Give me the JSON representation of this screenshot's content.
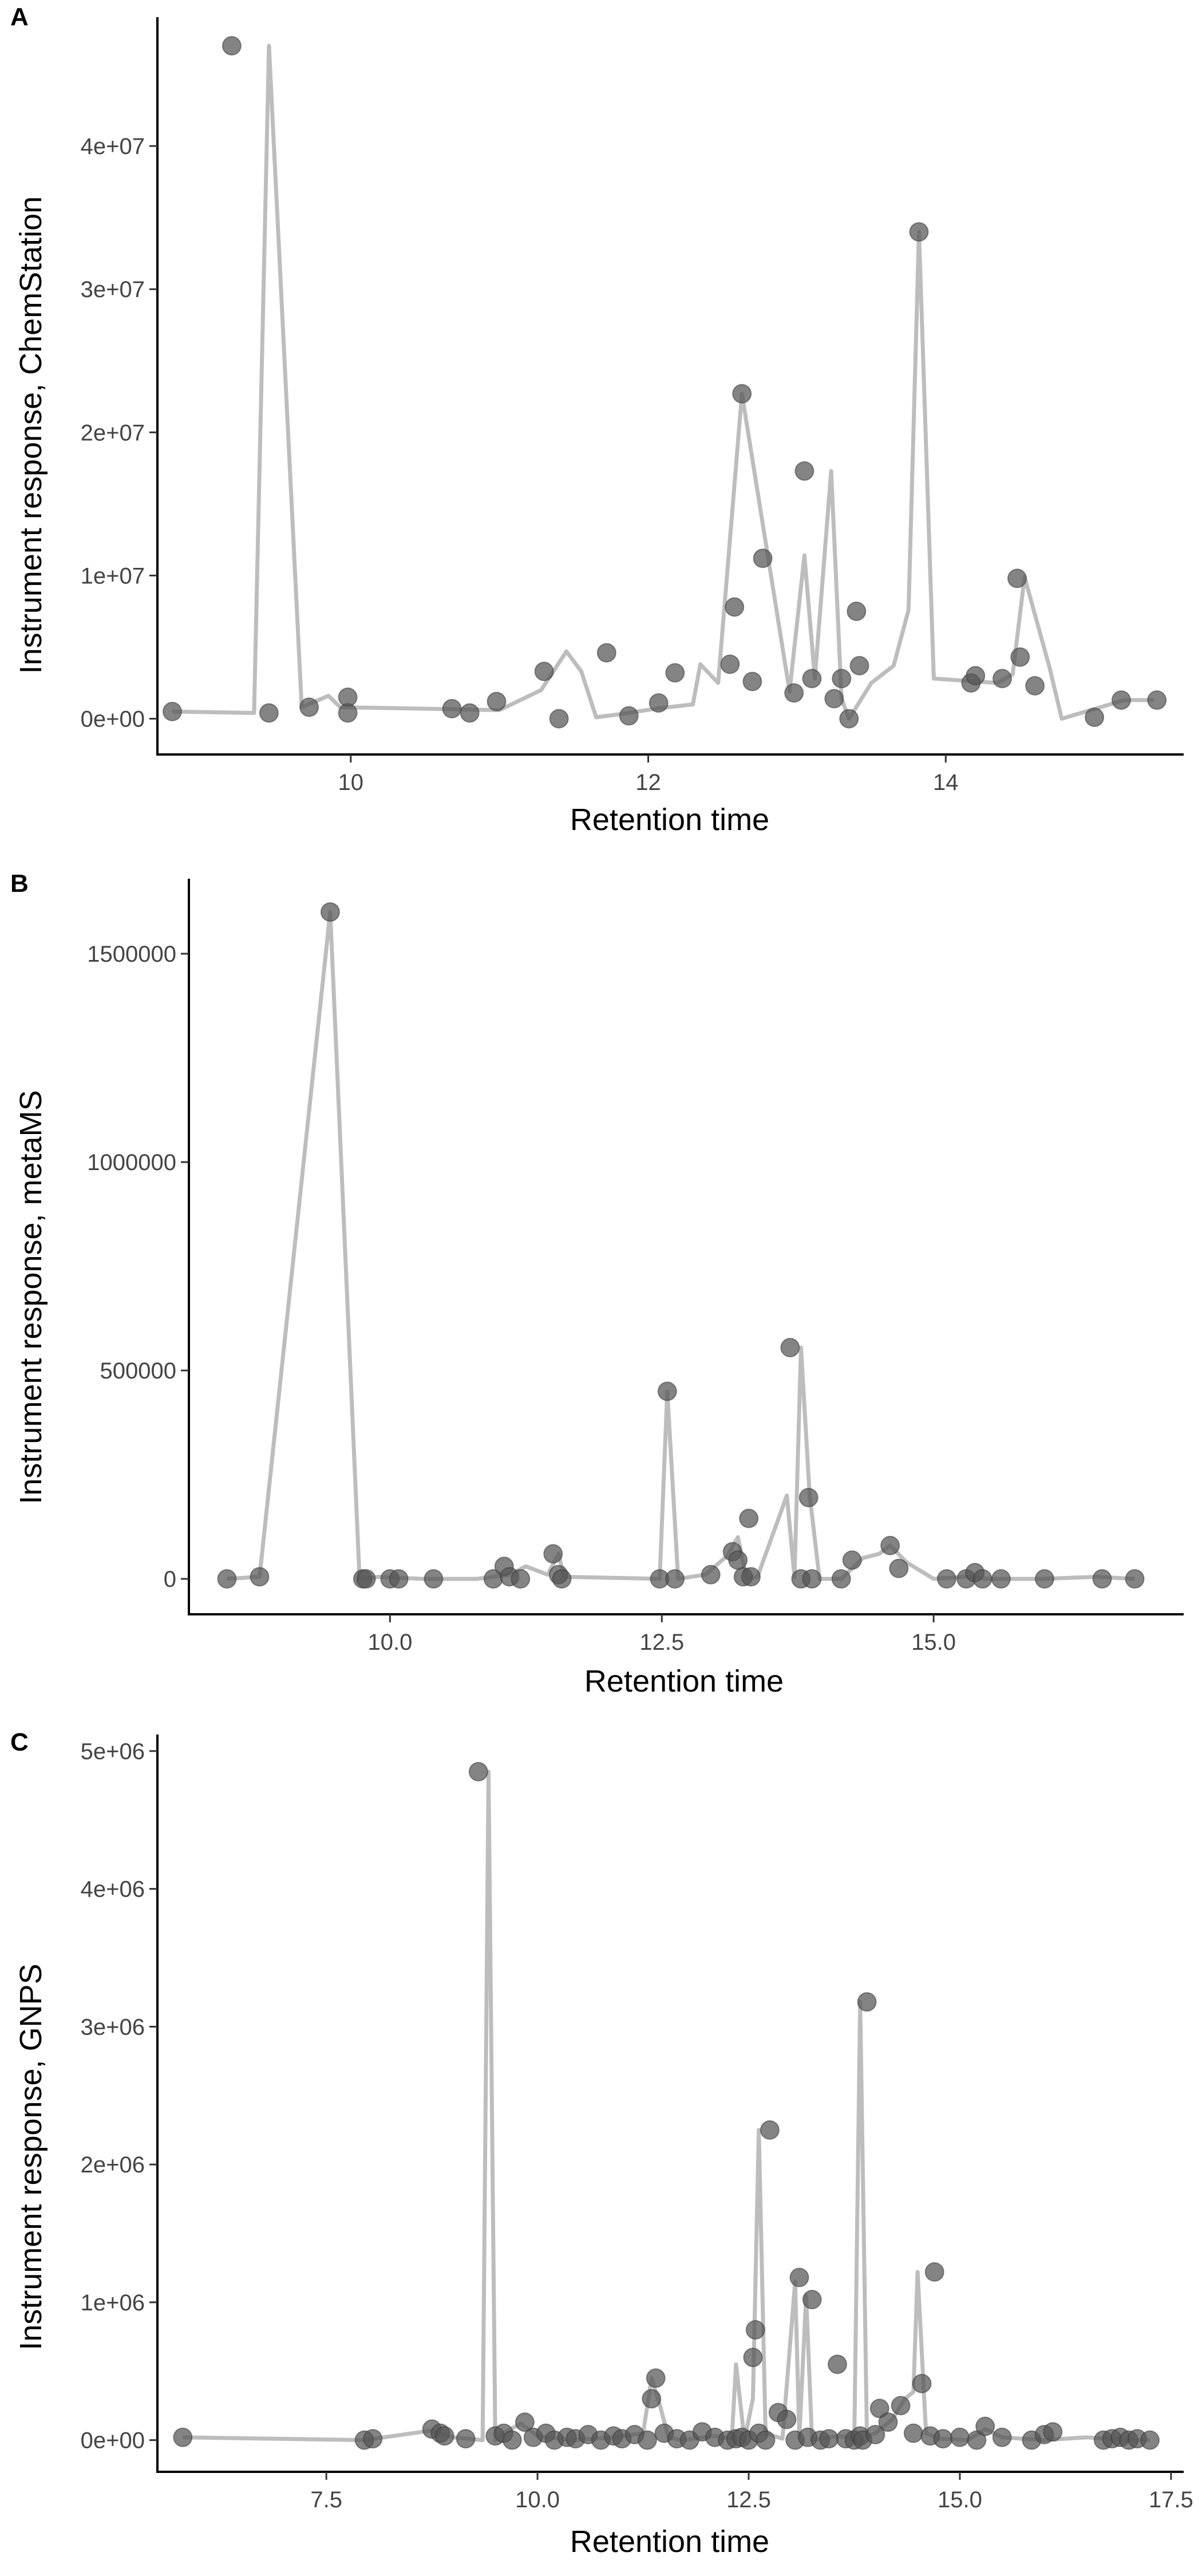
{
  "chart_data": [
    {
      "type": "scatter",
      "panel_label": "A",
      "xlabel": "Retention time",
      "ylabel": "Instrument response, ChemStation",
      "xlim": [
        8.7,
        15.6
      ],
      "ylim": [
        -2500000,
        49000000
      ],
      "xticks": [
        10,
        12,
        14
      ],
      "xtick_labels": [
        "10",
        "12",
        "14"
      ],
      "yticks": [
        0,
        10000000,
        20000000,
        30000000,
        40000000
      ],
      "ytick_labels": [
        "0e+00",
        "1e+07",
        "2e+07",
        "3e+07",
        "4e+07"
      ],
      "grid": false,
      "series": [
        {
          "role": "points",
          "x": [
            8.8,
            9.2,
            9.45,
            9.72,
            9.98,
            9.98,
            10.68,
            10.8,
            10.98,
            11.3,
            11.4,
            11.72,
            11.87,
            12.07,
            12.18,
            12.55,
            12.58,
            12.63,
            12.7,
            12.77,
            12.98,
            13.05,
            13.1,
            13.25,
            13.3,
            13.35,
            13.4,
            13.42,
            13.82,
            14.17,
            14.2,
            14.38,
            14.48,
            14.5,
            14.6,
            15.0,
            15.18,
            15.42
          ],
          "y": [
            500000,
            47000000,
            400000,
            800000,
            1500000,
            400000,
            700000,
            400000,
            1200000,
            3300000,
            0,
            4600000,
            200000,
            1100000,
            3200000,
            3800000,
            7800000,
            22700000,
            2600000,
            11200000,
            1800000,
            17300000,
            2800000,
            1400000,
            2800000,
            0,
            7500000,
            3700000,
            34000000,
            2500000,
            3000000,
            2800000,
            9800000,
            4300000,
            2300000,
            100000,
            1300000,
            1300000
          ]
        },
        {
          "role": "line",
          "x": [
            8.8,
            9.35,
            9.45,
            9.67,
            9.85,
            9.93,
            10.5,
            11.0,
            11.28,
            11.45,
            11.55,
            11.65,
            11.8,
            12.05,
            12.3,
            12.35,
            12.47,
            12.63,
            12.95,
            13.05,
            13.12,
            13.23,
            13.3,
            13.35,
            13.5,
            13.65,
            13.75,
            13.82,
            13.92,
            14.35,
            14.45,
            14.53,
            14.7,
            14.78,
            15.2,
            15.4
          ],
          "y": [
            500000,
            400000,
            47000000,
            800000,
            1600000,
            800000,
            700000,
            600000,
            2000000,
            4700000,
            3300000,
            100000,
            300000,
            700000,
            1000000,
            3800000,
            2500000,
            22700000,
            1900000,
            11400000,
            2800000,
            17300000,
            1400000,
            0,
            2500000,
            3700000,
            7600000,
            34000000,
            2800000,
            2500000,
            3100000,
            9900000,
            3500000,
            0,
            1300000,
            1300000
          ]
        }
      ]
    },
    {
      "type": "scatter",
      "panel_label": "B",
      "xlabel": "Retention time",
      "ylabel": "Instrument response, metaMS",
      "xlim": [
        8.15,
        17.3
      ],
      "ylim": [
        -85000,
        1680000
      ],
      "xticks": [
        10.0,
        12.5,
        15.0
      ],
      "xtick_labels": [
        "10.0",
        "12.5",
        "15.0"
      ],
      "yticks": [
        0,
        500000,
        1000000,
        1500000
      ],
      "ytick_labels": [
        "0",
        "500000",
        "1000000",
        "1500000"
      ],
      "grid": false,
      "series": [
        {
          "role": "points",
          "x": [
            8.5,
            8.8,
            9.45,
            9.75,
            9.78,
            10.0,
            10.08,
            10.4,
            10.95,
            11.05,
            11.1,
            11.2,
            11.5,
            11.55,
            11.58,
            12.48,
            12.55,
            12.62,
            12.95,
            13.15,
            13.2,
            13.25,
            13.3,
            13.32,
            13.68,
            13.78,
            13.85,
            13.88,
            14.15,
            14.25,
            14.6,
            14.68,
            15.12,
            15.3,
            15.38,
            15.45,
            15.62,
            16.02,
            16.55,
            16.85
          ],
          "y": [
            0,
            5000,
            1600000,
            0,
            0,
            0,
            0,
            0,
            0,
            30000,
            5000,
            0,
            60000,
            10000,
            0,
            0,
            450000,
            0,
            10000,
            65000,
            45000,
            5000,
            145000,
            5000,
            555000,
            0,
            195000,
            0,
            0,
            45000,
            80000,
            25000,
            0,
            0,
            15000,
            0,
            0,
            0,
            0,
            0
          ]
        },
        {
          "role": "line",
          "x": [
            8.5,
            8.8,
            9.45,
            9.72,
            9.9,
            10.3,
            10.8,
            11.1,
            11.25,
            11.45,
            11.55,
            11.6,
            12.48,
            12.55,
            12.65,
            12.9,
            13.1,
            13.2,
            13.28,
            13.38,
            13.65,
            13.72,
            13.78,
            13.86,
            13.95,
            14.15,
            14.35,
            14.5,
            14.6,
            14.75,
            15.0,
            15.3,
            15.5,
            16.0,
            16.5,
            16.85
          ],
          "y": [
            0,
            5000,
            1600000,
            0,
            5000,
            0,
            0,
            10000,
            30000,
            10000,
            60000,
            5000,
            0,
            450000,
            0,
            10000,
            55000,
            100000,
            0,
            5000,
            200000,
            5000,
            555000,
            200000,
            0,
            0,
            50000,
            60000,
            80000,
            40000,
            0,
            5000,
            0,
            0,
            5000,
            0
          ]
        }
      ]
    },
    {
      "type": "scatter",
      "panel_label": "C",
      "xlabel": "Retention time",
      "ylabel": "Instrument response, GNPS",
      "xlim": [
        5.5,
        17.65
      ],
      "ylim": [
        -230000,
        5120000
      ],
      "xticks": [
        7.5,
        10.0,
        12.5,
        15.0,
        17.5
      ],
      "xtick_labels": [
        "7.5",
        "10.0",
        "12.5",
        "15.0",
        "17.5"
      ],
      "yticks": [
        0,
        1000000,
        2000000,
        3000000,
        4000000,
        5000000
      ],
      "ytick_labels": [
        "0e+00",
        "1e+06",
        "2e+06",
        "3e+06",
        "4e+06",
        "5e+06"
      ],
      "grid": false,
      "series": [
        {
          "role": "points",
          "x": [
            5.8,
            7.95,
            8.05,
            8.75,
            8.85,
            8.9,
            9.15,
            9.3,
            9.5,
            9.6,
            9.7,
            9.85,
            9.95,
            10.1,
            10.2,
            10.35,
            10.45,
            10.6,
            10.75,
            10.9,
            11.0,
            11.15,
            11.3,
            11.35,
            11.4,
            11.5,
            11.65,
            11.8,
            11.95,
            12.1,
            12.25,
            12.35,
            12.42,
            12.5,
            12.55,
            12.58,
            12.62,
            12.7,
            12.75,
            12.85,
            12.95,
            13.05,
            13.1,
            13.2,
            13.25,
            13.35,
            13.45,
            13.55,
            13.65,
            13.75,
            13.82,
            13.85,
            13.9,
            14.0,
            14.05,
            14.15,
            14.3,
            14.45,
            14.55,
            14.65,
            14.7,
            14.8,
            15.0,
            15.2,
            15.3,
            15.5,
            15.85,
            16.0,
            16.1,
            16.7,
            16.8,
            16.9,
            17.0,
            17.1,
            17.25
          ],
          "y": [
            20000,
            0,
            10000,
            80000,
            50000,
            30000,
            10000,
            4850000,
            30000,
            50000,
            0,
            130000,
            20000,
            50000,
            0,
            20000,
            10000,
            40000,
            0,
            30000,
            10000,
            40000,
            0,
            300000,
            450000,
            50000,
            10000,
            0,
            60000,
            20000,
            0,
            10000,
            20000,
            0,
            600000,
            800000,
            50000,
            0,
            2250000,
            200000,
            150000,
            0,
            1180000,
            20000,
            1020000,
            0,
            10000,
            550000,
            10000,
            0,
            30000,
            0,
            3180000,
            40000,
            230000,
            130000,
            250000,
            50000,
            410000,
            30000,
            1220000,
            10000,
            20000,
            0,
            100000,
            20000,
            0,
            40000,
            60000,
            0,
            10000,
            20000,
            0,
            10000,
            0
          ]
        },
        {
          "role": "line",
          "x": [
            5.8,
            7.95,
            8.75,
            9.0,
            9.35,
            9.42,
            9.5,
            9.6,
            9.8,
            10.0,
            10.4,
            10.9,
            11.25,
            11.35,
            11.45,
            11.55,
            11.7,
            12.1,
            12.3,
            12.35,
            12.45,
            12.55,
            12.62,
            12.7,
            12.9,
            13.05,
            13.1,
            13.18,
            13.25,
            13.35,
            13.55,
            13.68,
            13.75,
            13.82,
            13.9,
            14.0,
            14.2,
            14.35,
            14.45,
            14.5,
            14.6,
            14.75,
            15.1,
            15.3,
            15.5,
            16.0,
            16.5,
            17.0,
            17.25
          ],
          "y": [
            20000,
            0,
            70000,
            20000,
            0,
            4850000,
            0,
            50000,
            120000,
            30000,
            0,
            20000,
            50000,
            450000,
            250000,
            20000,
            0,
            30000,
            10000,
            550000,
            0,
            300000,
            2250000,
            50000,
            10000,
            1150000,
            20000,
            1050000,
            0,
            10000,
            30000,
            20000,
            0,
            3180000,
            30000,
            50000,
            150000,
            300000,
            350000,
            1220000,
            50000,
            10000,
            0,
            80000,
            20000,
            0,
            20000,
            0,
            0
          ]
        }
      ]
    }
  ]
}
